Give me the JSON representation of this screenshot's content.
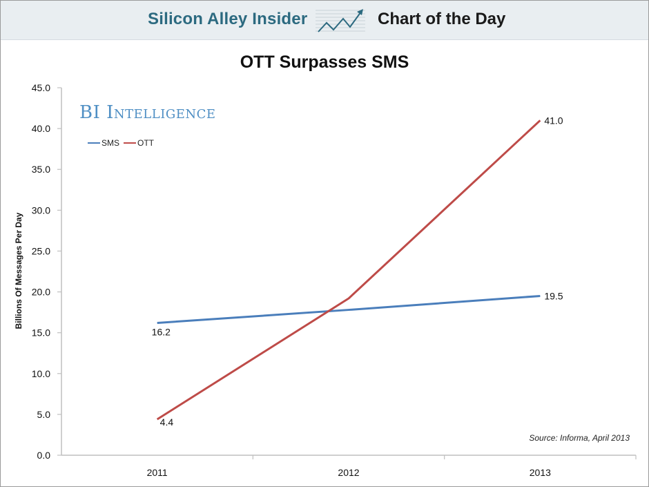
{
  "header": {
    "brand": "Silicon Alley Insider",
    "section": "Chart of the Day"
  },
  "watermark": "BI Intelligence",
  "colors": {
    "sms": "#4a7ebb",
    "ott": "#be4b48",
    "brand": "#2c6a80",
    "axis": "#bfbfbf"
  },
  "chart_data": {
    "type": "line",
    "title": "OTT Surpasses SMS",
    "xlabel": "",
    "ylabel": "Billions Of Messages Per Day",
    "categories": [
      "2011",
      "2012",
      "2013"
    ],
    "series": [
      {
        "name": "SMS",
        "values": [
          16.2,
          17.8,
          19.5
        ],
        "labels": [
          "16.2",
          null,
          "19.5"
        ]
      },
      {
        "name": "OTT",
        "values": [
          4.4,
          19.2,
          41.0
        ],
        "labels": [
          "4.4",
          null,
          "41.0"
        ]
      }
    ],
    "ylim": [
      0,
      45
    ],
    "yticks": [
      "0.0",
      "5.0",
      "10.0",
      "15.0",
      "20.0",
      "25.0",
      "30.0",
      "35.0",
      "40.0",
      "45.0"
    ],
    "grid": false,
    "legend": "top-left",
    "source": "Source: Informa, April 2013"
  }
}
